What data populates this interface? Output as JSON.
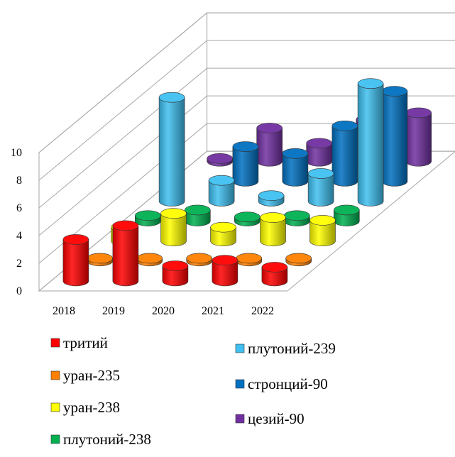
{
  "chart_data": {
    "type": "bar",
    "style": "3d-cylinder",
    "categories": [
      "2018",
      "2019",
      "2020",
      "2021",
      "2022"
    ],
    "ylim": [
      0,
      10
    ],
    "yticks": [
      "0",
      "2",
      "4",
      "6",
      "8",
      "10"
    ],
    "grid": true,
    "legend_position": "bottom",
    "title": "",
    "xlabel": "",
    "ylabel": "",
    "series": [
      {
        "name": "тритий",
        "color": "#ff0000",
        "values": [
          3.0,
          4.0,
          1.1,
          1.5,
          1.0
        ]
      },
      {
        "name": "уран-235",
        "color": "#ff8000",
        "values": [
          0.2,
          0.2,
          0.2,
          0.2,
          0.2
        ]
      },
      {
        "name": "уран-238",
        "color": "#ffff00",
        "values": [
          1.0,
          2.0,
          1.0,
          1.7,
          1.5
        ]
      },
      {
        "name": "плутоний-238",
        "color": "#00b050",
        "values": [
          0.4,
          0.8,
          0.3,
          0.4,
          0.8
        ]
      },
      {
        "name": "плутоний-239",
        "color": "#3fc0f0",
        "values": [
          7.5,
          1.5,
          0.4,
          2.0,
          8.5
        ]
      },
      {
        "name": "стронций-90",
        "color": "#0070c0",
        "values": [
          0.0,
          2.5,
          2.0,
          4.0,
          6.5
        ]
      },
      {
        "name": "цезий-90",
        "color": "#7030a0",
        "values": [
          0.2,
          2.4,
          1.3,
          3.0,
          3.5
        ]
      }
    ]
  }
}
